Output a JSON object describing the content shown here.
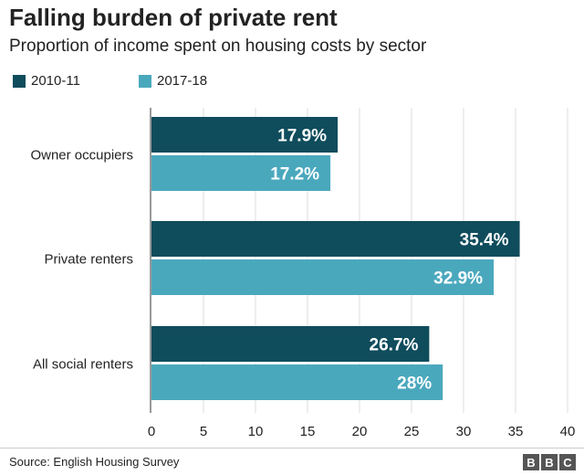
{
  "header": {
    "title": "Falling burden of private rent",
    "subtitle": "Proportion of income spent on housing costs by sector"
  },
  "legend": [
    {
      "label": "2010-11",
      "color": "#0f4c5c"
    },
    {
      "label": "2017-18",
      "color": "#4aa8bd"
    }
  ],
  "chart_data": {
    "type": "bar",
    "orientation": "horizontal",
    "title": "Falling burden of private rent",
    "subtitle": "Proportion of income spent on housing costs by sector",
    "categories": [
      "Owner occupiers",
      "Private renters",
      "All social renters"
    ],
    "series": [
      {
        "name": "2010-11",
        "color": "#0f4c5c",
        "values": [
          17.9,
          35.4,
          26.7
        ],
        "labels": [
          "17.9%",
          "35.4%",
          "26.7%"
        ]
      },
      {
        "name": "2017-18",
        "color": "#4aa8bd",
        "values": [
          17.2,
          32.9,
          28
        ],
        "labels": [
          "17.2%",
          "32.9%",
          "28%"
        ]
      }
    ],
    "xlim": [
      0,
      40
    ],
    "xticks": [
      0,
      5,
      10,
      15,
      20,
      25,
      30,
      35,
      40
    ],
    "grid": true,
    "legend_position": "top-left"
  },
  "footer": {
    "source": "Source: English Housing Survey",
    "logo_letters": [
      "B",
      "B",
      "C"
    ]
  }
}
